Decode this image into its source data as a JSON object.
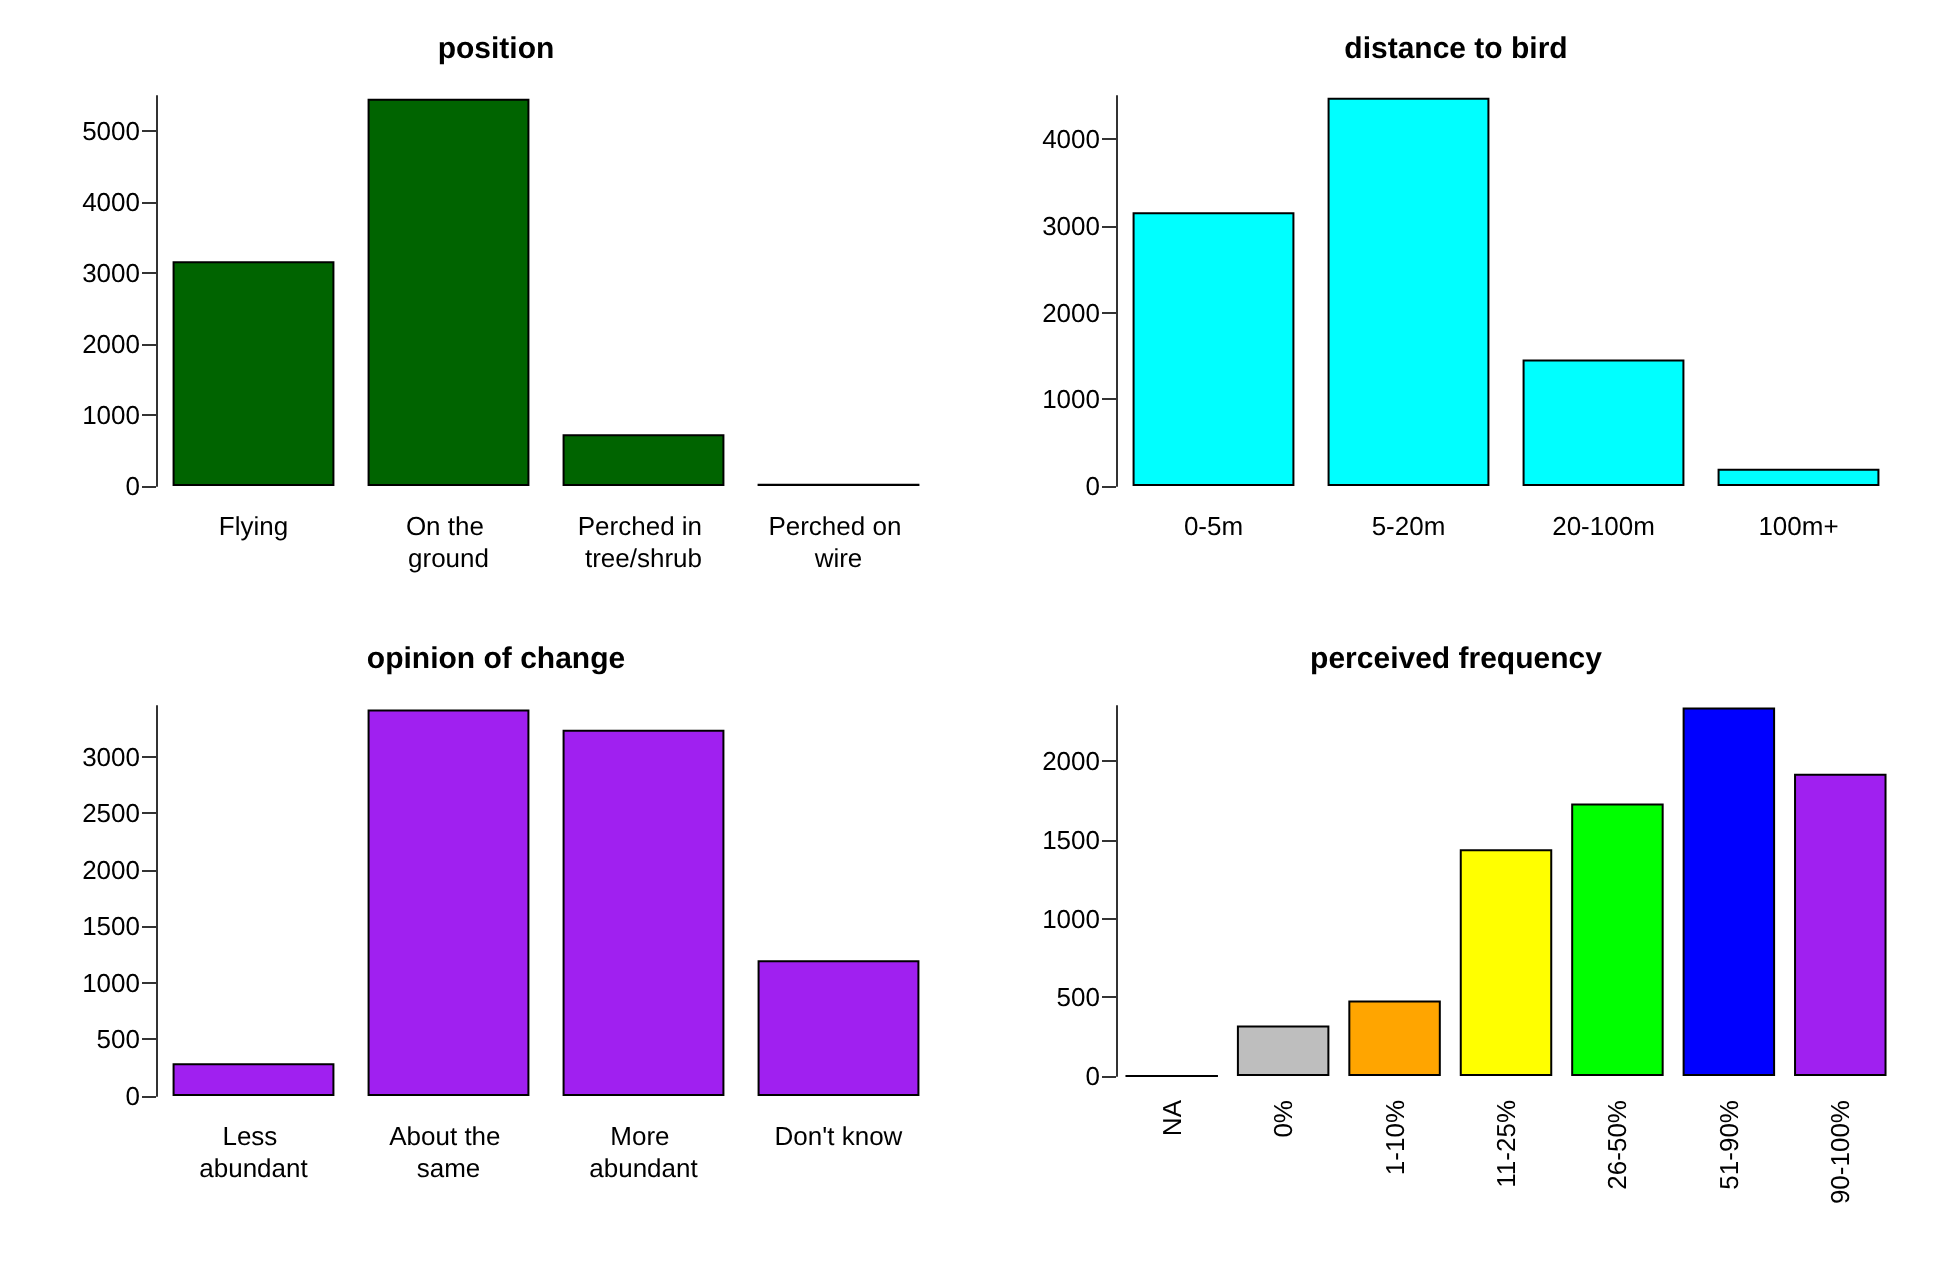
{
  "chart_data": [
    {
      "type": "bar",
      "title": "position",
      "categories": [
        "Flying",
        "On the ground",
        "Perched in tree/shrub",
        "Perched on wire"
      ],
      "values": [
        3170,
        5460,
        730,
        30
      ],
      "color": "#006400",
      "ylim": [
        0,
        5500
      ],
      "yticks": [
        0,
        1000,
        2000,
        3000,
        4000,
        5000
      ]
    },
    {
      "type": "bar",
      "title": "distance to bird",
      "categories": [
        "0-5m",
        "5-20m",
        "20-100m",
        "100m+"
      ],
      "values": [
        3160,
        4480,
        1460,
        200
      ],
      "color": "#00ffff",
      "ylim": [
        0,
        4500
      ],
      "yticks": [
        0,
        1000,
        2000,
        3000,
        4000
      ]
    },
    {
      "type": "bar",
      "title": "opinion of change",
      "categories": [
        "Less abundant",
        "About the same",
        "More abundant",
        "Don't know"
      ],
      "values": [
        290,
        3420,
        3240,
        1200
      ],
      "color": "#a020f0",
      "ylim": [
        0,
        3450
      ],
      "yticks": [
        0,
        500,
        1000,
        1500,
        2000,
        2500,
        3000
      ]
    },
    {
      "type": "bar",
      "title": "perceived frequency",
      "categories": [
        "NA",
        "0%",
        "1-10%",
        "11-25%",
        "26-50%",
        "51-90%",
        "90-100%"
      ],
      "values": [
        0,
        320,
        480,
        1440,
        1730,
        2340,
        1920
      ],
      "colors": [
        "#000000",
        "#bebebe",
        "#ffa500",
        "#ffff00",
        "#00ff00",
        "#0000ff",
        "#a020f0"
      ],
      "ylim": [
        0,
        2350
      ],
      "yticks": [
        0,
        500,
        1000,
        1500,
        2000
      ]
    }
  ]
}
